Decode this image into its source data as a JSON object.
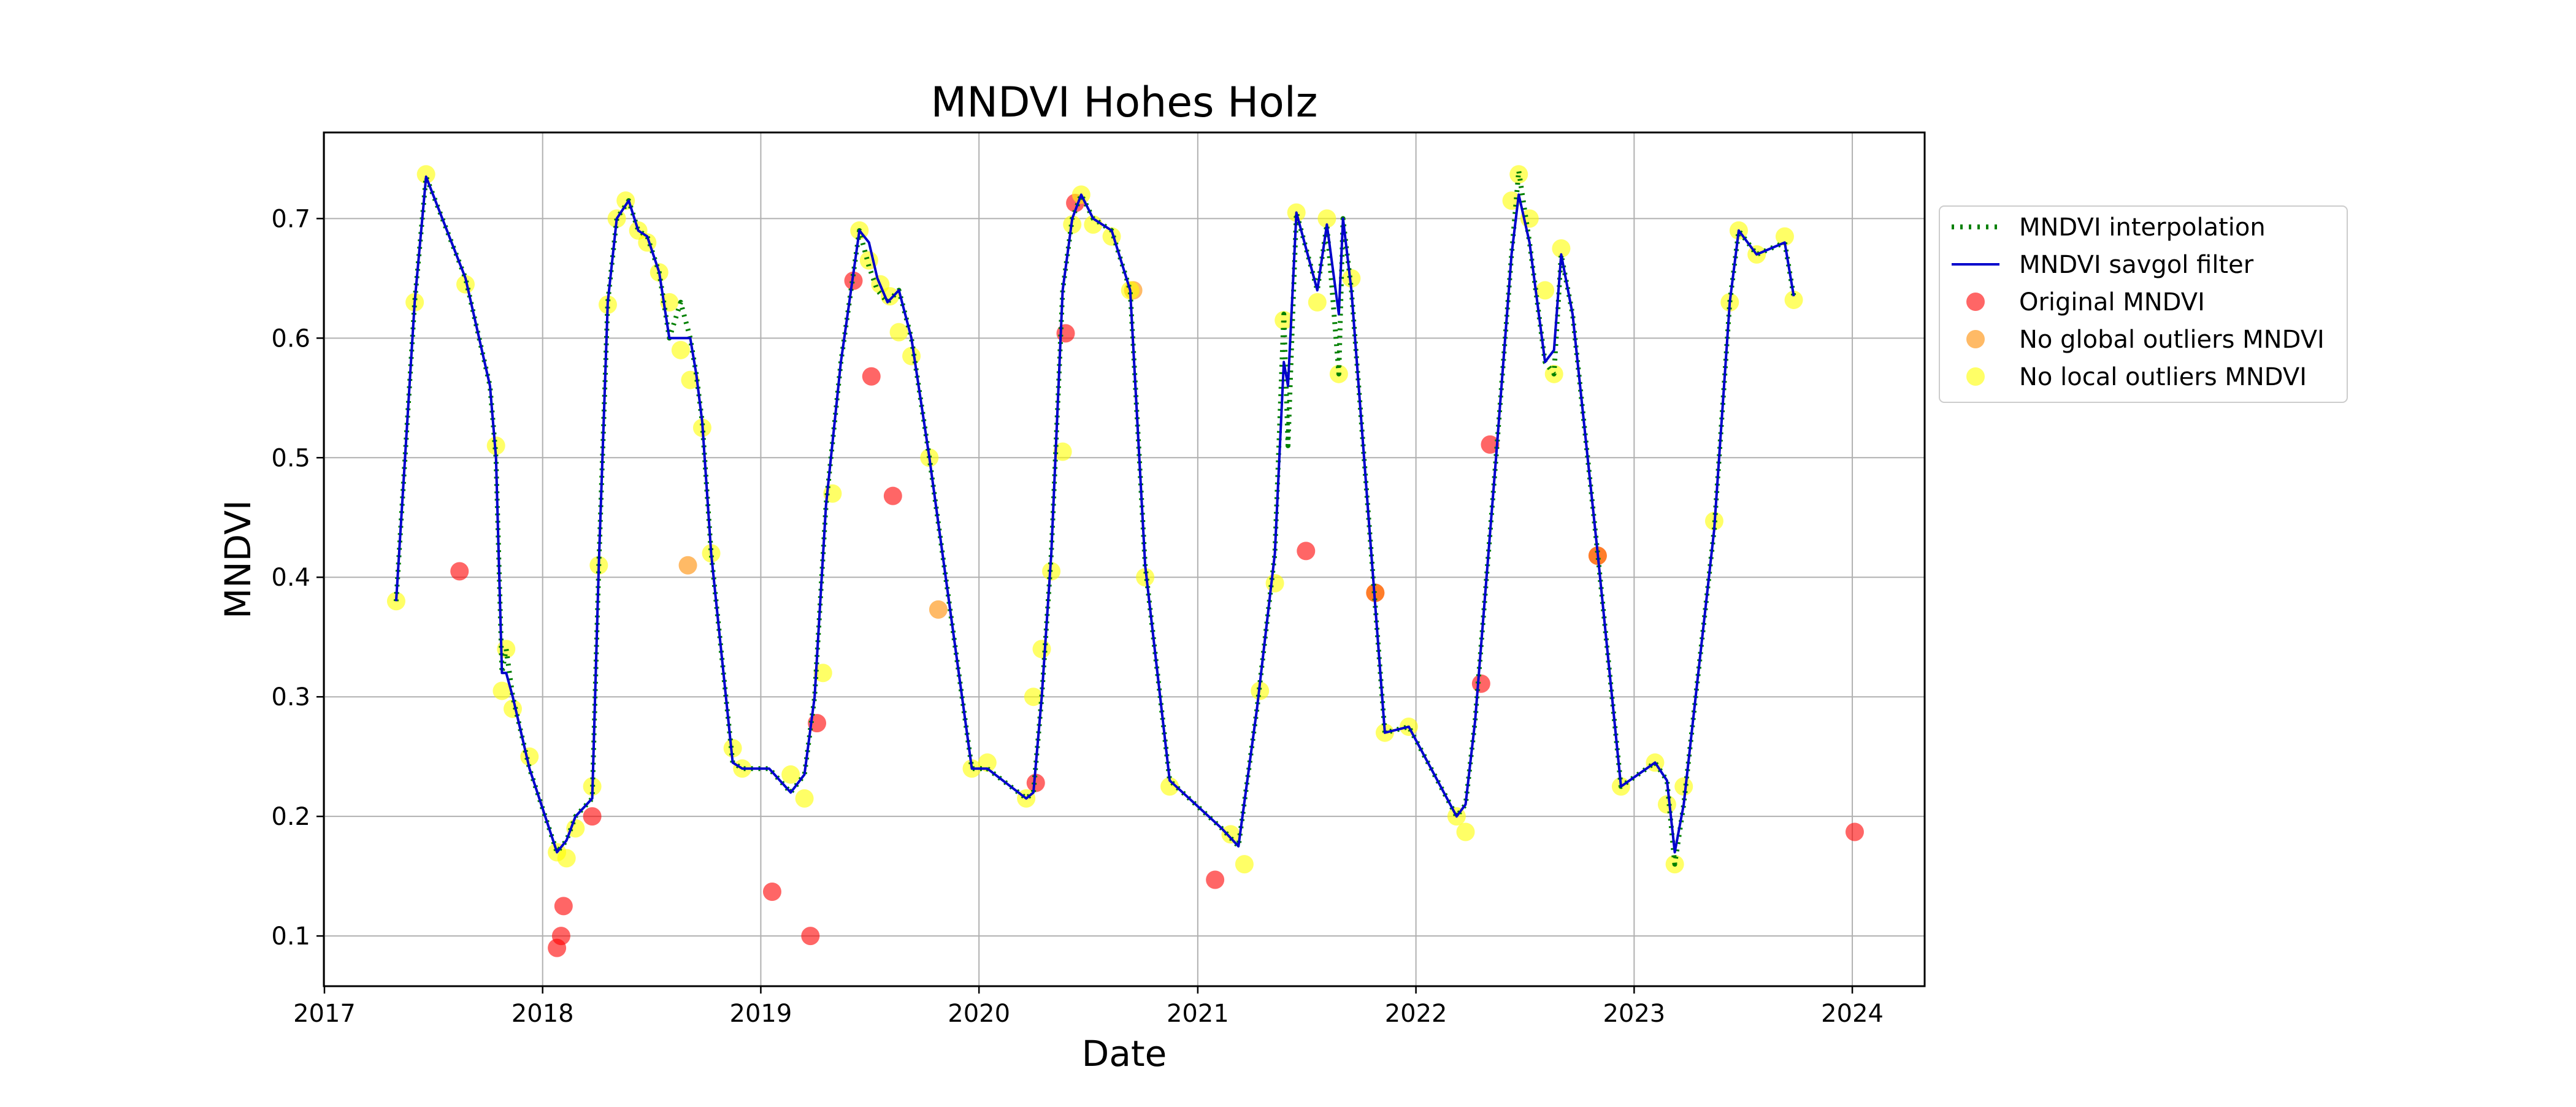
{
  "chart_data": {
    "type": "scatter",
    "title": "MNDVI Hohes Holz",
    "xlabel": "Date",
    "ylabel": "MNDVI",
    "xlim": [
      "2016-12-31",
      "2024-05-01"
    ],
    "ylim": [
      0.058,
      0.772
    ],
    "grid": true,
    "legend_position": "outside-right",
    "x_ticks": [
      "2017-01-01",
      "2018-01-01",
      "2019-01-01",
      "2020-01-01",
      "2021-01-01",
      "2022-01-01",
      "2023-01-01",
      "2024-01-01"
    ],
    "x_tick_labels": [
      "2017",
      "2018",
      "2019",
      "2020",
      "2021",
      "2022",
      "2023",
      "2024"
    ],
    "y_ticks": [
      0.1,
      0.2,
      0.3,
      0.4,
      0.5,
      0.6,
      0.7
    ],
    "y_tick_labels": [
      "0.1",
      "0.2",
      "0.3",
      "0.4",
      "0.5",
      "0.6",
      "0.7"
    ],
    "colors": {
      "interpolation": "#008000",
      "savgol": "#0000cc",
      "original": "#ff0000",
      "no_global": "#ff8c00",
      "no_local": "#ffff00"
    },
    "series": [
      {
        "name": "MNDVI interpolation",
        "style": "dotted-line",
        "x": [
          "2017-05-01",
          "2017-06-01",
          "2017-06-20",
          "2017-08-25",
          "2017-10-05",
          "2017-10-15",
          "2017-10-25",
          "2017-11-01",
          "2017-11-12",
          "2017-12-10",
          "2018-01-25",
          "2018-02-10",
          "2018-02-25",
          "2018-03-25",
          "2018-04-05",
          "2018-04-20",
          "2018-05-05",
          "2018-05-25",
          "2018-06-10",
          "2018-06-25",
          "2018-07-15",
          "2018-08-01",
          "2018-08-20",
          "2018-09-05",
          "2018-09-15",
          "2018-09-25",
          "2018-10-10",
          "2018-11-15",
          "2018-12-01",
          "2019-01-15",
          "2019-02-20",
          "2019-03-15",
          "2019-04-01",
          "2019-04-20",
          "2019-05-15",
          "2019-06-15",
          "2019-07-01",
          "2019-07-15",
          "2019-08-01",
          "2019-08-20",
          "2019-09-10",
          "2019-10-10",
          "2019-12-20",
          "2020-01-15",
          "2020-03-20",
          "2020-04-01",
          "2020-04-15",
          "2020-05-01",
          "2020-05-20",
          "2020-06-05",
          "2020-06-20",
          "2020-07-10",
          "2020-08-10",
          "2020-09-10",
          "2020-10-05",
          "2020-11-15",
          "2021-02-10",
          "2021-03-10",
          "2021-04-10",
          "2021-05-10",
          "2021-05-25",
          "2021-06-01",
          "2021-06-15",
          "2021-07-20",
          "2021-08-05",
          "2021-08-25",
          "2021-09-01",
          "2021-09-15",
          "2021-11-10",
          "2021-12-20",
          "2022-03-10",
          "2022-03-25",
          "2022-04-10",
          "2022-05-15",
          "2022-06-10",
          "2022-06-22",
          "2022-07-10",
          "2022-08-05",
          "2022-08-20",
          "2022-09-01",
          "2022-09-20",
          "2022-11-01",
          "2022-12-10",
          "2023-02-05",
          "2023-02-25",
          "2023-03-10",
          "2023-03-25",
          "2023-05-15",
          "2023-06-10",
          "2023-06-25",
          "2023-07-25",
          "2023-09-10",
          "2023-09-25"
        ],
        "y": [
          0.38,
          0.63,
          0.735,
          0.65,
          0.56,
          0.5,
          0.32,
          0.34,
          0.3,
          0.24,
          0.17,
          0.18,
          0.2,
          0.215,
          0.41,
          0.63,
          0.7,
          0.715,
          0.69,
          0.685,
          0.655,
          0.6,
          0.63,
          0.6,
          0.57,
          0.53,
          0.42,
          0.245,
          0.24,
          0.24,
          0.22,
          0.235,
          0.3,
          0.46,
          0.58,
          0.69,
          0.66,
          0.64,
          0.63,
          0.64,
          0.6,
          0.5,
          0.24,
          0.24,
          0.215,
          0.22,
          0.3,
          0.42,
          0.64,
          0.7,
          0.72,
          0.7,
          0.69,
          0.64,
          0.41,
          0.23,
          0.19,
          0.175,
          0.29,
          0.42,
          0.62,
          0.51,
          0.705,
          0.64,
          0.695,
          0.57,
          0.7,
          0.64,
          0.27,
          0.275,
          0.2,
          0.21,
          0.28,
          0.5,
          0.67,
          0.74,
          0.68,
          0.58,
          0.57,
          0.67,
          0.62,
          0.42,
          0.225,
          0.245,
          0.23,
          0.16,
          0.21,
          0.44,
          0.63,
          0.69,
          0.67,
          0.68,
          0.635
        ]
      },
      {
        "name": "MNDVI savgol filter",
        "style": "line",
        "x": [
          "2017-05-01",
          "2017-06-01",
          "2017-06-20",
          "2017-08-25",
          "2017-10-05",
          "2017-10-15",
          "2017-10-25",
          "2017-11-01",
          "2017-11-12",
          "2017-12-10",
          "2018-01-25",
          "2018-02-10",
          "2018-02-25",
          "2018-03-25",
          "2018-04-05",
          "2018-04-20",
          "2018-05-05",
          "2018-05-25",
          "2018-06-10",
          "2018-06-25",
          "2018-07-15",
          "2018-08-01",
          "2018-08-20",
          "2018-09-05",
          "2018-09-15",
          "2018-09-25",
          "2018-10-10",
          "2018-11-15",
          "2018-12-01",
          "2019-01-15",
          "2019-02-20",
          "2019-03-15",
          "2019-04-01",
          "2019-04-20",
          "2019-05-15",
          "2019-06-15",
          "2019-07-01",
          "2019-07-15",
          "2019-08-01",
          "2019-08-20",
          "2019-09-10",
          "2019-10-10",
          "2019-12-20",
          "2020-01-15",
          "2020-03-20",
          "2020-04-01",
          "2020-04-15",
          "2020-05-01",
          "2020-05-20",
          "2020-06-05",
          "2020-06-20",
          "2020-07-10",
          "2020-08-10",
          "2020-09-10",
          "2020-10-05",
          "2020-11-15",
          "2021-02-10",
          "2021-03-10",
          "2021-04-10",
          "2021-05-10",
          "2021-05-25",
          "2021-06-01",
          "2021-06-15",
          "2021-07-20",
          "2021-08-05",
          "2021-08-25",
          "2021-09-01",
          "2021-09-15",
          "2021-11-10",
          "2021-12-20",
          "2022-03-10",
          "2022-03-25",
          "2022-04-10",
          "2022-05-15",
          "2022-06-10",
          "2022-06-22",
          "2022-07-10",
          "2022-08-05",
          "2022-08-20",
          "2022-09-01",
          "2022-09-20",
          "2022-11-01",
          "2022-12-10",
          "2023-02-05",
          "2023-02-25",
          "2023-03-10",
          "2023-03-25",
          "2023-05-15",
          "2023-06-10",
          "2023-06-25",
          "2023-07-25",
          "2023-09-10",
          "2023-09-25"
        ],
        "y": [
          0.38,
          0.63,
          0.735,
          0.65,
          0.56,
          0.5,
          0.32,
          0.32,
          0.3,
          0.24,
          0.17,
          0.18,
          0.2,
          0.215,
          0.41,
          0.63,
          0.7,
          0.715,
          0.69,
          0.685,
          0.655,
          0.6,
          0.6,
          0.6,
          0.57,
          0.53,
          0.42,
          0.245,
          0.24,
          0.24,
          0.22,
          0.235,
          0.3,
          0.46,
          0.58,
          0.69,
          0.68,
          0.65,
          0.63,
          0.64,
          0.6,
          0.5,
          0.24,
          0.24,
          0.215,
          0.22,
          0.3,
          0.42,
          0.64,
          0.7,
          0.72,
          0.7,
          0.69,
          0.64,
          0.41,
          0.23,
          0.19,
          0.175,
          0.29,
          0.42,
          0.58,
          0.56,
          0.705,
          0.64,
          0.695,
          0.62,
          0.7,
          0.64,
          0.27,
          0.275,
          0.2,
          0.21,
          0.28,
          0.5,
          0.67,
          0.72,
          0.68,
          0.58,
          0.59,
          0.67,
          0.62,
          0.42,
          0.225,
          0.245,
          0.23,
          0.17,
          0.21,
          0.44,
          0.63,
          0.69,
          0.67,
          0.68,
          0.635
        ]
      },
      {
        "name": "Original MNDVI",
        "style": "scatter",
        "x": [
          "2017-08-15",
          "2018-01-25",
          "2018-02-01",
          "2018-02-05",
          "2018-03-25",
          "2019-01-20",
          "2019-03-25",
          "2019-04-05",
          "2019-06-05",
          "2019-07-05",
          "2019-08-10",
          "2020-04-05",
          "2020-05-25",
          "2020-06-10",
          "2021-01-30",
          "2021-07-01",
          "2021-10-25",
          "2022-04-20",
          "2022-05-05",
          "2022-11-01",
          "2024-01-05"
        ],
        "y": [
          0.405,
          0.09,
          0.1,
          0.125,
          0.2,
          0.137,
          0.1,
          0.278,
          0.648,
          0.568,
          0.468,
          0.228,
          0.604,
          0.713,
          0.147,
          0.422,
          0.387,
          0.311,
          0.511,
          0.418,
          0.187
        ]
      },
      {
        "name": "No global outliers MNDVI",
        "style": "scatter",
        "x": [
          "2018-09-01",
          "2019-10-25",
          "2020-09-15",
          "2022-11-01",
          "2021-10-25"
        ],
        "y": [
          0.41,
          0.373,
          0.64,
          0.418,
          0.387
        ]
      },
      {
        "name": "No local outliers MNDVI",
        "style": "scatter",
        "x": [
          "2017-05-01",
          "2017-06-01",
          "2017-06-20",
          "2017-08-25",
          "2017-10-15",
          "2017-10-25",
          "2017-11-01",
          "2017-11-12",
          "2017-12-10",
          "2018-01-25",
          "2018-02-10",
          "2018-02-25",
          "2018-03-25",
          "2018-04-05",
          "2018-04-20",
          "2018-05-05",
          "2018-05-20",
          "2018-06-10",
          "2018-06-25",
          "2018-07-15",
          "2018-08-01",
          "2018-08-20",
          "2018-09-05",
          "2018-09-25",
          "2018-10-10",
          "2018-11-15",
          "2018-12-01",
          "2019-02-20",
          "2019-03-15",
          "2019-04-15",
          "2019-05-01",
          "2019-06-15",
          "2019-07-01",
          "2019-07-20",
          "2019-08-05",
          "2019-08-20",
          "2019-09-10",
          "2019-10-10",
          "2019-12-20",
          "2020-01-15",
          "2020-03-20",
          "2020-04-01",
          "2020-04-15",
          "2020-05-01",
          "2020-05-20",
          "2020-06-05",
          "2020-06-20",
          "2020-07-10",
          "2020-08-10",
          "2020-09-10",
          "2020-10-05",
          "2020-11-15",
          "2021-02-25",
          "2021-03-20",
          "2021-04-15",
          "2021-05-10",
          "2021-05-25",
          "2021-06-15",
          "2021-07-20",
          "2021-08-05",
          "2021-08-25",
          "2021-09-15",
          "2021-11-10",
          "2021-12-20",
          "2022-03-10",
          "2022-03-25",
          "2022-06-10",
          "2022-06-22",
          "2022-07-10",
          "2022-08-05",
          "2022-08-20",
          "2022-09-01",
          "2022-12-10",
          "2023-02-05",
          "2023-02-25",
          "2023-03-10",
          "2023-03-25",
          "2023-05-15",
          "2023-06-10",
          "2023-06-25",
          "2023-07-25",
          "2023-09-10",
          "2023-09-25"
        ],
        "y": [
          0.38,
          0.63,
          0.737,
          0.645,
          0.51,
          0.305,
          0.34,
          0.29,
          0.25,
          0.17,
          0.165,
          0.19,
          0.225,
          0.41,
          0.628,
          0.7,
          0.715,
          0.69,
          0.68,
          0.655,
          0.63,
          0.59,
          0.565,
          0.525,
          0.42,
          0.257,
          0.24,
          0.235,
          0.215,
          0.32,
          0.47,
          0.69,
          0.665,
          0.645,
          0.635,
          0.605,
          0.585,
          0.5,
          0.24,
          0.245,
          0.215,
          0.3,
          0.34,
          0.405,
          0.505,
          0.695,
          0.72,
          0.695,
          0.685,
          0.64,
          0.4,
          0.225,
          0.185,
          0.16,
          0.305,
          0.395,
          0.615,
          0.705,
          0.63,
          0.7,
          0.57,
          0.65,
          0.27,
          0.275,
          0.2,
          0.187,
          0.715,
          0.737,
          0.7,
          0.64,
          0.57,
          0.675,
          0.225,
          0.245,
          0.21,
          0.16,
          0.225,
          0.447,
          0.63,
          0.69,
          0.67,
          0.685,
          0.632
        ]
      }
    ]
  }
}
